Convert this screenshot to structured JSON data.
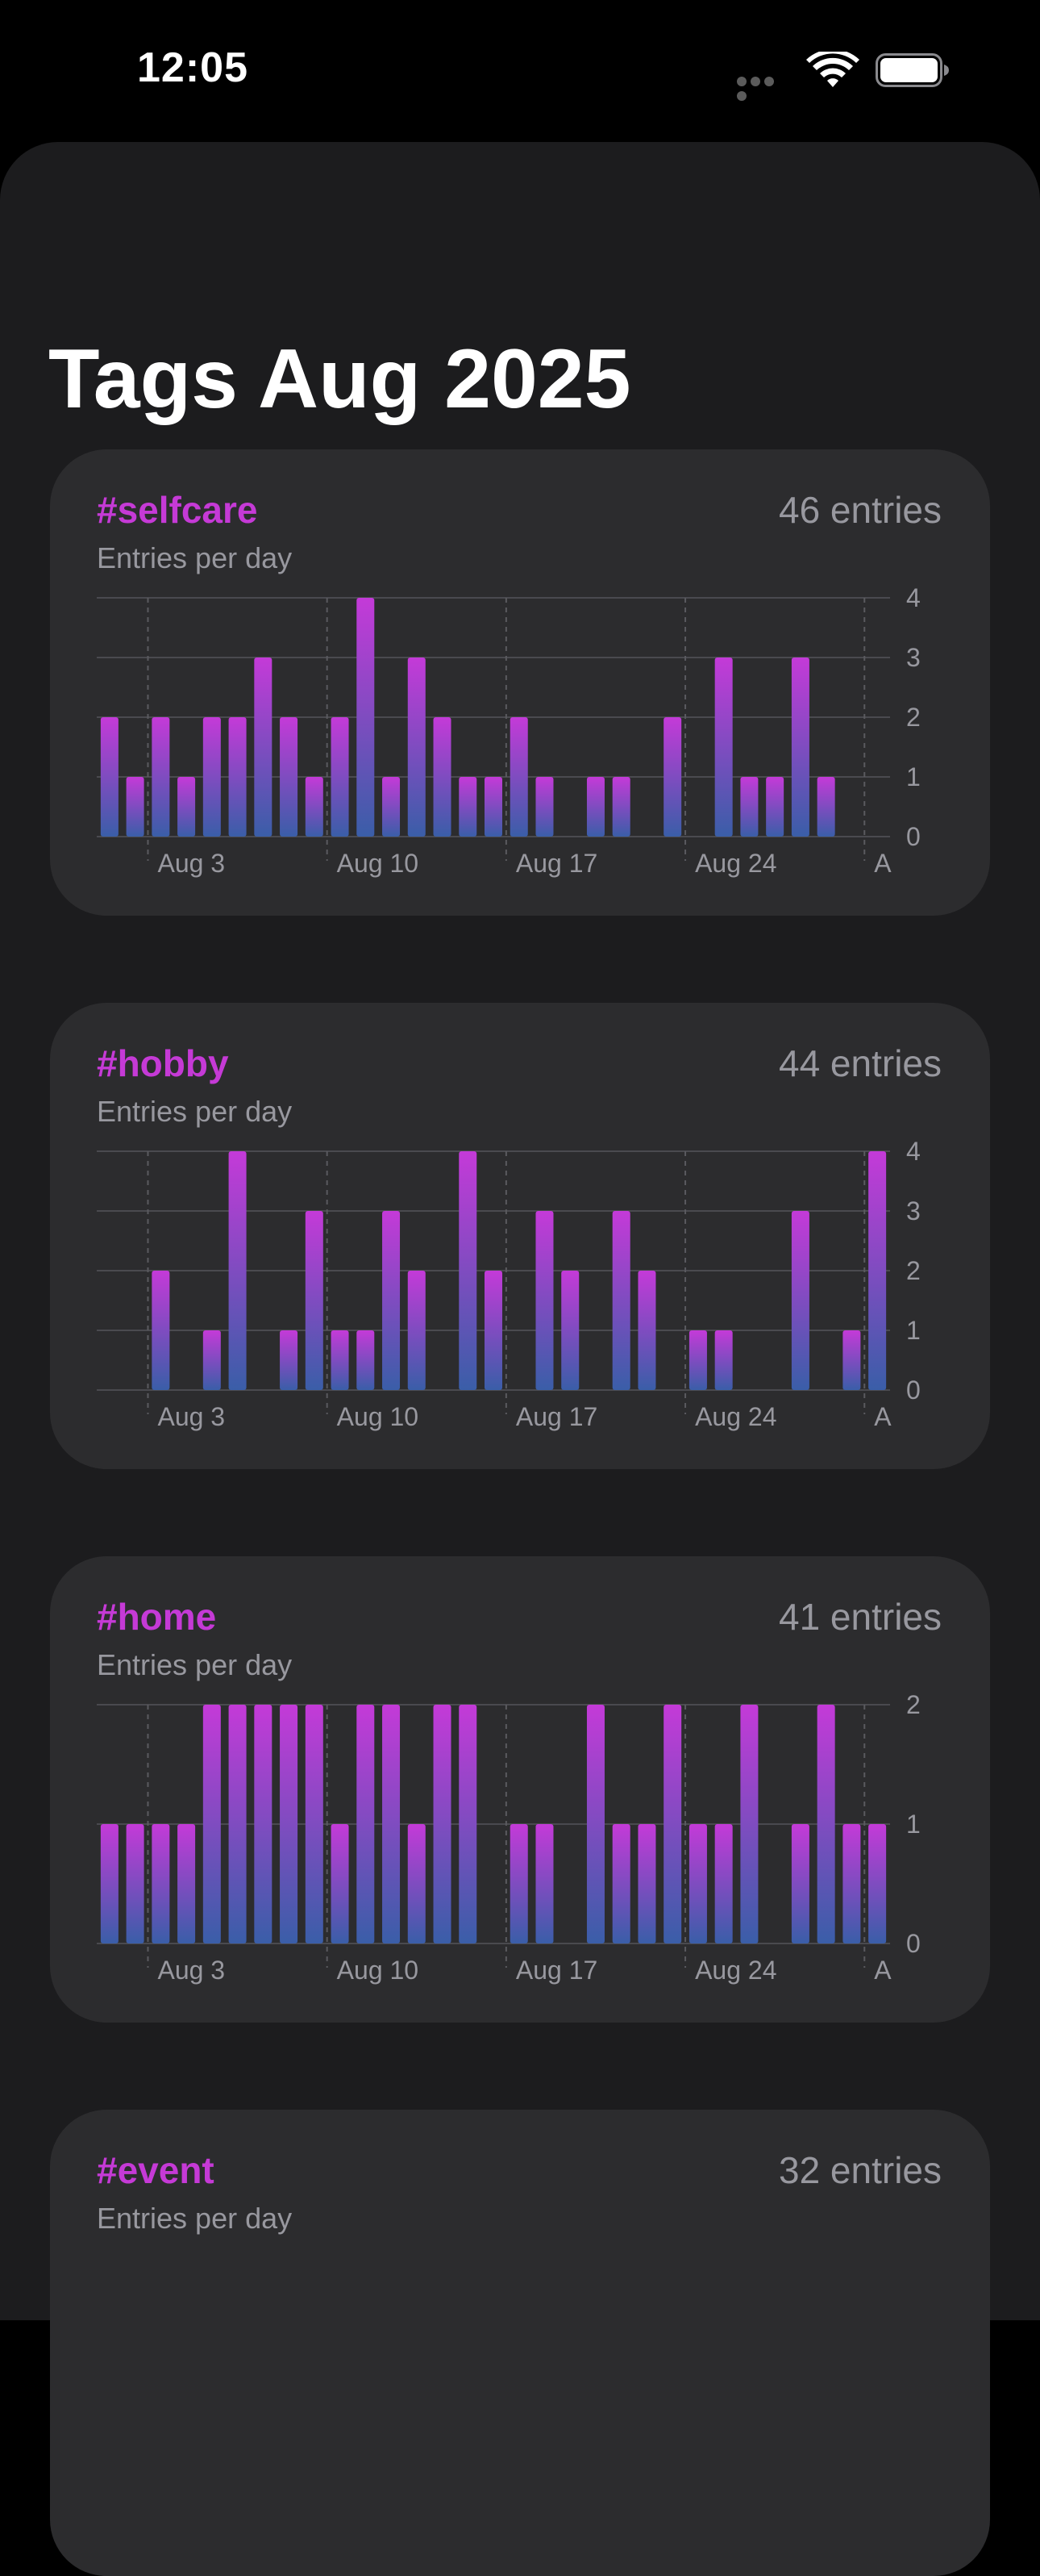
{
  "status_bar": {
    "time": "12:05"
  },
  "page": {
    "title": "Tags Aug 2025"
  },
  "colors": {
    "tag": "#c53ad6",
    "bar_top": "#c43ad8",
    "bar_bottom": "#3a5ea8",
    "card_bg": "#2c2c2e",
    "sheet_bg": "#1c1c1e"
  },
  "cards": [
    {
      "tag": "#selfcare",
      "count": "46 entries",
      "subtitle": "Entries per day"
    },
    {
      "tag": "#hobby",
      "count": "44 entries",
      "subtitle": "Entries per day"
    },
    {
      "tag": "#home",
      "count": "41 entries",
      "subtitle": "Entries per day"
    },
    {
      "tag": "#event",
      "count": "32 entries",
      "subtitle": "Entries per day"
    }
  ],
  "chart_data": [
    {
      "type": "bar",
      "x": [
        "Aug 1",
        "Aug 2",
        "Aug 3",
        "Aug 4",
        "Aug 5",
        "Aug 6",
        "Aug 7",
        "Aug 8",
        "Aug 9",
        "Aug 10",
        "Aug 11",
        "Aug 12",
        "Aug 13",
        "Aug 14",
        "Aug 15",
        "Aug 16",
        "Aug 17",
        "Aug 18",
        "Aug 19",
        "Aug 20",
        "Aug 21",
        "Aug 22",
        "Aug 23",
        "Aug 24",
        "Aug 25",
        "Aug 26",
        "Aug 27",
        "Aug 28",
        "Aug 29",
        "Aug 30",
        "Aug 31"
      ],
      "values": [
        2,
        1,
        2,
        1,
        2,
        2,
        3,
        2,
        1,
        2,
        4,
        1,
        3,
        2,
        1,
        1,
        2,
        1,
        0,
        1,
        1,
        0,
        2,
        0,
        3,
        1,
        1,
        3,
        1,
        0,
        0
      ],
      "xtick_labels": [
        "Aug 3",
        "Aug 10",
        "Aug 17",
        "Aug 24",
        "A"
      ],
      "ylim": [
        0,
        4
      ],
      "yticks": [
        0,
        1,
        2,
        3,
        4
      ],
      "grid": true
    },
    {
      "type": "bar",
      "x": [
        "Aug 1",
        "Aug 2",
        "Aug 3",
        "Aug 4",
        "Aug 5",
        "Aug 6",
        "Aug 7",
        "Aug 8",
        "Aug 9",
        "Aug 10",
        "Aug 11",
        "Aug 12",
        "Aug 13",
        "Aug 14",
        "Aug 15",
        "Aug 16",
        "Aug 17",
        "Aug 18",
        "Aug 19",
        "Aug 20",
        "Aug 21",
        "Aug 22",
        "Aug 23",
        "Aug 24",
        "Aug 25",
        "Aug 26",
        "Aug 27",
        "Aug 28",
        "Aug 29",
        "Aug 30",
        "Aug 31"
      ],
      "values": [
        0,
        0,
        2,
        0,
        1,
        4,
        0,
        1,
        3,
        1,
        1,
        3,
        2,
        0,
        4,
        2,
        0,
        3,
        2,
        0,
        3,
        2,
        0,
        1,
        1,
        0,
        0,
        3,
        0,
        1,
        4
      ],
      "xtick_labels": [
        "Aug 3",
        "Aug 10",
        "Aug 17",
        "Aug 24",
        "A"
      ],
      "ylim": [
        0,
        4
      ],
      "yticks": [
        0,
        1,
        2,
        3,
        4
      ],
      "grid": true
    },
    {
      "type": "bar",
      "x": [
        "Aug 1",
        "Aug 2",
        "Aug 3",
        "Aug 4",
        "Aug 5",
        "Aug 6",
        "Aug 7",
        "Aug 8",
        "Aug 9",
        "Aug 10",
        "Aug 11",
        "Aug 12",
        "Aug 13",
        "Aug 14",
        "Aug 15",
        "Aug 16",
        "Aug 17",
        "Aug 18",
        "Aug 19",
        "Aug 20",
        "Aug 21",
        "Aug 22",
        "Aug 23",
        "Aug 24",
        "Aug 25",
        "Aug 26",
        "Aug 27",
        "Aug 28",
        "Aug 29",
        "Aug 30",
        "Aug 31"
      ],
      "values": [
        1,
        1,
        1,
        1,
        2,
        2,
        2,
        2,
        2,
        1,
        2,
        2,
        1,
        2,
        2,
        0,
        1,
        1,
        0,
        2,
        1,
        1,
        2,
        1,
        1,
        2,
        0,
        1,
        2,
        1,
        1
      ],
      "xtick_labels": [
        "Aug 3",
        "Aug 10",
        "Aug 17",
        "Aug 24",
        "A"
      ],
      "ylim": [
        0,
        2
      ],
      "yticks": [
        0,
        1,
        2
      ],
      "grid": true
    }
  ]
}
